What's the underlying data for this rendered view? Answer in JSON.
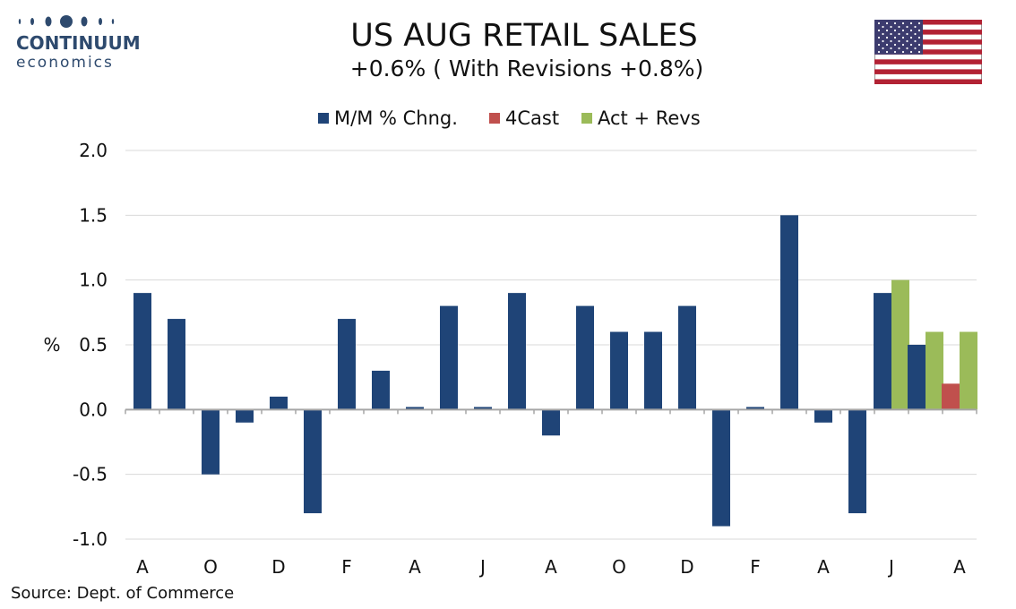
{
  "logo": {
    "name": "CONTINUUM",
    "sub": "economics"
  },
  "header": {
    "title": "US AUG RETAIL SALES",
    "subtitle": "+0.6% ( With Revisions +0.8%)"
  },
  "flag_icon": "us-flag-icon",
  "source": "Source: Dept. of Commerce",
  "colors": {
    "mm": "#1f4477",
    "forecast": "#c0504d",
    "actual": "#9bbb59",
    "grid": "#d9d9d9",
    "logo": "#2e4a6e"
  },
  "chart_data": {
    "type": "bar",
    "ylabel": "%",
    "ylim": [
      -1.0,
      2.0
    ],
    "yticks": [
      "2.0",
      "1.5",
      "1.0",
      "0.5",
      "0.0",
      "-0.5",
      "-1.0"
    ],
    "x_tick_labels": [
      "A",
      "O",
      "D",
      "F",
      "A",
      "J",
      "A",
      "O",
      "D",
      "F",
      "A",
      "J",
      "A"
    ],
    "grid": true,
    "legend_position": "top-center",
    "series": [
      {
        "name": "M/M % Chng.",
        "values": [
          0.9,
          0.7,
          -0.5,
          -0.1,
          0.1,
          -0.8,
          0.7,
          0.3,
          0.02,
          0.8,
          0.02,
          0.9,
          -0.2,
          0.8,
          0.6,
          0.6,
          0.8,
          -0.9,
          0.02,
          1.5,
          -0.1,
          -0.8,
          0.9,
          0.5,
          null
        ]
      },
      {
        "name": "4Cast",
        "values": [
          null,
          null,
          null,
          null,
          null,
          null,
          null,
          null,
          null,
          null,
          null,
          null,
          null,
          null,
          null,
          null,
          null,
          null,
          null,
          null,
          null,
          null,
          null,
          null,
          0.2
        ]
      },
      {
        "name": "Act + Revs",
        "values": [
          null,
          null,
          null,
          null,
          null,
          null,
          null,
          null,
          null,
          null,
          null,
          null,
          null,
          null,
          null,
          null,
          null,
          null,
          null,
          null,
          null,
          null,
          1.0,
          0.6,
          0.6
        ]
      }
    ]
  }
}
